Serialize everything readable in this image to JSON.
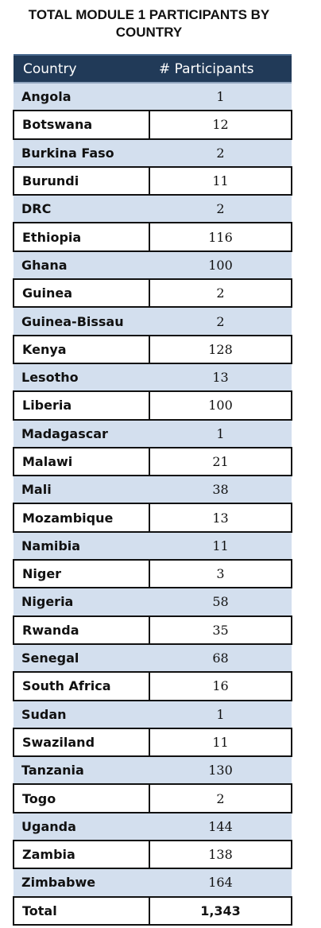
{
  "title": "TOTAL MODULE 1 PARTICIPANTS BY COUNTRY",
  "colors": {
    "header_bg": "#213a58",
    "shaded_row": "#d3dfee",
    "border": "#111111"
  },
  "chart_data": {
    "type": "table",
    "title": "TOTAL MODULE 1 PARTICIPANTS BY COUNTRY",
    "columns": [
      "Country",
      "# Participants"
    ],
    "rows": [
      {
        "country": "Angola",
        "participants": "1"
      },
      {
        "country": "Botswana",
        "participants": "12"
      },
      {
        "country": "Burkina Faso",
        "participants": "2"
      },
      {
        "country": "Burundi",
        "participants": "11"
      },
      {
        "country": "DRC",
        "participants": "2"
      },
      {
        "country": "Ethiopia",
        "participants": "116"
      },
      {
        "country": "Ghana",
        "participants": "100"
      },
      {
        "country": "Guinea",
        "participants": "2"
      },
      {
        "country": "Guinea-Bissau",
        "participants": "2"
      },
      {
        "country": "Kenya",
        "participants": "128"
      },
      {
        "country": "Lesotho",
        "participants": "13"
      },
      {
        "country": "Liberia",
        "participants": "100"
      },
      {
        "country": "Madagascar",
        "participants": "1"
      },
      {
        "country": "Malawi",
        "participants": "21"
      },
      {
        "country": "Mali",
        "participants": "38"
      },
      {
        "country": "Mozambique",
        "participants": "13"
      },
      {
        "country": "Namibia",
        "participants": "11"
      },
      {
        "country": "Niger",
        "participants": "3"
      },
      {
        "country": "Nigeria",
        "participants": "58"
      },
      {
        "country": "Rwanda",
        "participants": "35"
      },
      {
        "country": "Senegal",
        "participants": "68"
      },
      {
        "country": "South Africa",
        "participants": "16"
      },
      {
        "country": "Sudan",
        "participants": "1"
      },
      {
        "country": "Swaziland",
        "participants": "11"
      },
      {
        "country": "Tanzania",
        "participants": "130"
      },
      {
        "country": "Togo",
        "participants": "2"
      },
      {
        "country": "Uganda",
        "participants": "144"
      },
      {
        "country": "Zambia",
        "participants": "138"
      },
      {
        "country": "Zimbabwe",
        "participants": "164"
      }
    ],
    "total": {
      "label": "Total",
      "value": "1,343"
    }
  }
}
